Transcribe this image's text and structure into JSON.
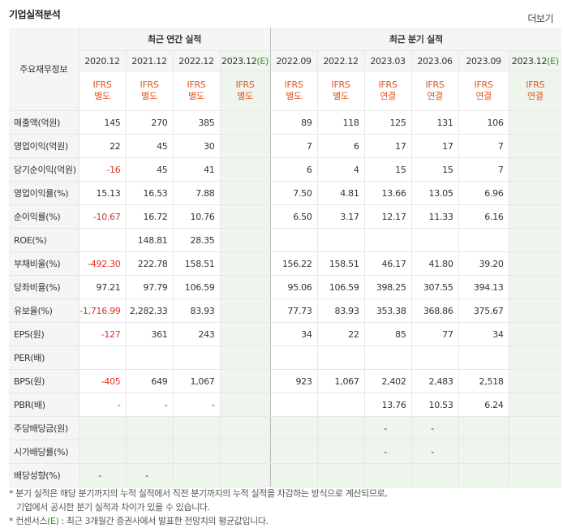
{
  "title": "기업실적분석",
  "more_label": "더보기",
  "row_header": "주요재무정보",
  "groups": {
    "annual": "최근 연간 실적",
    "quarterly": "최근 분기 실적"
  },
  "periods": [
    "2020.12",
    "2021.12",
    "2022.12",
    "2023.12(E)",
    "2022.09",
    "2022.12",
    "2023.03",
    "2023.06",
    "2023.09",
    "2023.12(E)"
  ],
  "ifrs": [
    "IFRS 별도",
    "IFRS 별도",
    "IFRS 별도",
    "IFRS 별도",
    "IFRS 별도",
    "IFRS 별도",
    "IFRS 연결",
    "IFRS 연결",
    "IFRS 연결",
    "IFRS 연결"
  ],
  "rows": [
    {
      "label": "매출액(억원)",
      "values": [
        "145",
        "270",
        "385",
        "",
        "89",
        "118",
        "125",
        "131",
        "106",
        ""
      ]
    },
    {
      "label": "영업이익(억원)",
      "values": [
        "22",
        "45",
        "30",
        "",
        "7",
        "6",
        "17",
        "17",
        "7",
        ""
      ]
    },
    {
      "label": "당기순이익(억원)",
      "values": [
        "-16",
        "45",
        "41",
        "",
        "6",
        "4",
        "15",
        "15",
        "7",
        ""
      ]
    },
    {
      "label": "영업이익률(%)",
      "values": [
        "15.13",
        "16.53",
        "7.88",
        "",
        "7.50",
        "4.81",
        "13.66",
        "13.05",
        "6.96",
        ""
      ]
    },
    {
      "label": "순이익률(%)",
      "values": [
        "-10.67",
        "16.72",
        "10.76",
        "",
        "6.50",
        "3.17",
        "12.17",
        "11.33",
        "6.16",
        ""
      ]
    },
    {
      "label": "ROE(%)",
      "values": [
        "",
        "148.81",
        "28.35",
        "",
        "",
        "",
        "",
        "",
        "",
        ""
      ]
    },
    {
      "label": "부채비율(%)",
      "values": [
        "-492.30",
        "222.78",
        "158.51",
        "",
        "156.22",
        "158.51",
        "46.17",
        "41.80",
        "39.20",
        ""
      ]
    },
    {
      "label": "당좌비율(%)",
      "values": [
        "97.21",
        "97.79",
        "106.59",
        "",
        "95.06",
        "106.59",
        "398.25",
        "307.55",
        "394.13",
        ""
      ]
    },
    {
      "label": "유보율(%)",
      "values": [
        "-1,716.99",
        "2,282.33",
        "83.93",
        "",
        "77.73",
        "83.93",
        "353.38",
        "368.86",
        "375.67",
        ""
      ]
    },
    {
      "label": "EPS(원)",
      "values": [
        "-127",
        "361",
        "243",
        "",
        "34",
        "22",
        "85",
        "77",
        "34",
        ""
      ]
    },
    {
      "label": "PER(배)",
      "values": [
        "",
        "",
        "",
        "",
        "",
        "",
        "",
        "",
        "",
        ""
      ]
    },
    {
      "label": "BPS(원)",
      "values": [
        "-405",
        "649",
        "1,067",
        "",
        "923",
        "1,067",
        "2,402",
        "2,483",
        "2,518",
        ""
      ]
    },
    {
      "label": "PBR(배)",
      "values": [
        "-",
        "-",
        "-",
        "",
        "",
        "",
        "13.76",
        "10.53",
        "6.24",
        ""
      ]
    },
    {
      "label": "주당배당금(원)",
      "values": [
        "",
        "",
        "",
        "",
        "",
        "",
        "-",
        "-",
        "",
        ""
      ]
    },
    {
      "label": "시가배당률(%)",
      "values": [
        "",
        "",
        "",
        "",
        "",
        "",
        "-",
        "-",
        "",
        ""
      ]
    },
    {
      "label": "배당성향(%)",
      "values": [
        "-",
        "-",
        "",
        "",
        "",
        "",
        "",
        "",
        "",
        ""
      ]
    }
  ],
  "notes": [
    "* 분기 실적은 해당 분기까지의 누적 실적에서 직전 분기까지의 누적 실적을 차감하는 방식으로 계산되므로,",
    "기업에서 공시한 분기 실적과 차이가 있을 수 있습니다.",
    "* 컨센서스(E) : 최근 3개월간 증권사에서 발표한 전망치의 평균값입니다."
  ],
  "colors": {
    "accent_orange": "#e8561c",
    "negative_red": "#e0301e",
    "estimate_green": "#3a8a2b",
    "estimate_bg": "#eef5ec"
  }
}
